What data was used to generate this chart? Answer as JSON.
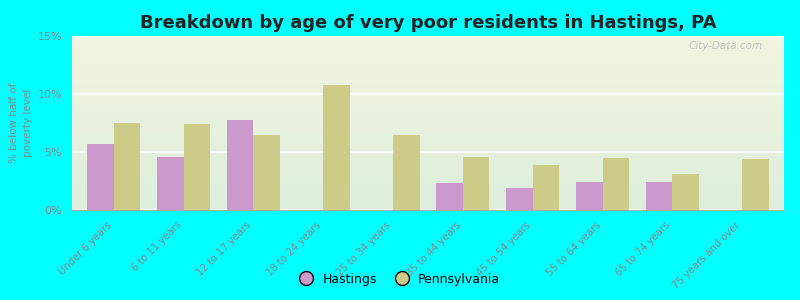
{
  "title": "Breakdown by age of very poor residents in Hastings, PA",
  "ylabel": "% below half of\npoverty level",
  "categories": [
    "Under 6 years",
    "6 to 11 years",
    "12 to 17 years",
    "18 to 24 years",
    "25 to 34 years",
    "35 to 44 years",
    "45 to 54 years",
    "55 to 64 years",
    "65 to 74 years",
    "75 years and over"
  ],
  "hastings": [
    5.7,
    4.6,
    7.8,
    0,
    0,
    2.3,
    1.9,
    2.4,
    2.4,
    0
  ],
  "pennsylvania": [
    7.5,
    7.4,
    6.5,
    10.8,
    6.5,
    4.6,
    3.9,
    4.5,
    3.1,
    4.4
  ],
  "hastings_color": "#cc99cc",
  "pennsylvania_color": "#cccc88",
  "background_color": "#00ffff",
  "plot_bg_top": "#f2f5e0",
  "plot_bg_bottom": "#deeedd",
  "ylim": [
    0,
    15
  ],
  "yticks": [
    0,
    5,
    10,
    15
  ],
  "ytick_labels": [
    "0%",
    "5%",
    "10%",
    "15%"
  ],
  "bar_width": 0.38,
  "title_fontsize": 13,
  "watermark": "City-Data.com",
  "axis_label_color": "#888888",
  "tick_label_color": "#888888"
}
